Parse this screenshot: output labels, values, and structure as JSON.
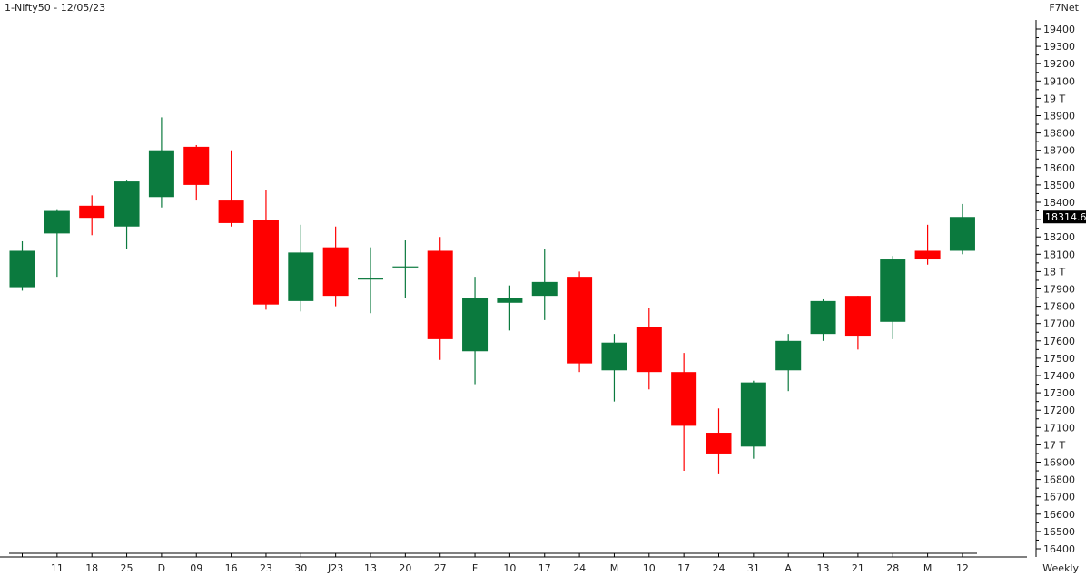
{
  "chart_data": {
    "type": "candlestick",
    "title": "1-Nifty50 - 12/05/23",
    "source": "F7Net",
    "period": "Weekly",
    "last_price": "18314.6",
    "ylim": [
      16400,
      19500
    ],
    "yticks": [
      "19400",
      "19300",
      "19200",
      "19100",
      "19 T",
      "18900",
      "18800",
      "18700",
      "18600",
      "18500",
      "18400",
      "18300",
      "18200",
      "18100",
      "18 T",
      "17900",
      "17800",
      "17700",
      "17600",
      "17500",
      "17400",
      "17300",
      "17200",
      "17100",
      "17 T",
      "16900",
      "16800",
      "16700",
      "16600",
      "16500",
      "16400"
    ],
    "candles": [
      {
        "label": "",
        "open": 17910,
        "high": 18175,
        "low": 17890,
        "close": 18120
      },
      {
        "label": "11",
        "open": 18220,
        "high": 18360,
        "low": 17970,
        "close": 18350
      },
      {
        "label": "18",
        "open": 18380,
        "high": 18440,
        "low": 18210,
        "close": 18310
      },
      {
        "label": "25",
        "open": 18260,
        "high": 18530,
        "low": 18130,
        "close": 18520
      },
      {
        "label": "D",
        "open": 18430,
        "high": 18890,
        "low": 18370,
        "close": 18700
      },
      {
        "label": "09",
        "open": 18720,
        "high": 18730,
        "low": 18410,
        "close": 18500
      },
      {
        "label": "16",
        "open": 18410,
        "high": 18700,
        "low": 18260,
        "close": 18280
      },
      {
        "label": "23",
        "open": 18300,
        "high": 18470,
        "low": 17780,
        "close": 17810
      },
      {
        "label": "30",
        "open": 17830,
        "high": 18270,
        "low": 17770,
        "close": 18110
      },
      {
        "label": "J23",
        "open": 18140,
        "high": 18260,
        "low": 17800,
        "close": 17860
      },
      {
        "label": "13",
        "open": 17960,
        "high": 18140,
        "low": 17760,
        "close": 17960
      },
      {
        "label": "20",
        "open": 18030,
        "high": 18180,
        "low": 17850,
        "close": 18030
      },
      {
        "label": "27",
        "open": 18120,
        "high": 18200,
        "low": 17490,
        "close": 17610
      },
      {
        "label": "F",
        "open": 17540,
        "high": 17970,
        "low": 17350,
        "close": 17850
      },
      {
        "label": "10",
        "open": 17820,
        "high": 17920,
        "low": 17660,
        "close": 17850
      },
      {
        "label": "17",
        "open": 17860,
        "high": 18130,
        "low": 17720,
        "close": 17940
      },
      {
        "label": "24",
        "open": 17970,
        "high": 18000,
        "low": 17420,
        "close": 17470
      },
      {
        "label": "M",
        "open": 17430,
        "high": 17640,
        "low": 17250,
        "close": 17590
      },
      {
        "label": "10",
        "open": 17680,
        "high": 17790,
        "low": 17320,
        "close": 17420
      },
      {
        "label": "17",
        "open": 17420,
        "high": 17530,
        "low": 16850,
        "close": 17110
      },
      {
        "label": "24",
        "open": 17070,
        "high": 17210,
        "low": 16830,
        "close": 16950
      },
      {
        "label": "31",
        "open": 16990,
        "high": 17370,
        "low": 16920,
        "close": 17360
      },
      {
        "label": "A",
        "open": 17430,
        "high": 17640,
        "low": 17310,
        "close": 17600
      },
      {
        "label": "13",
        "open": 17640,
        "high": 17840,
        "low": 17600,
        "close": 17830
      },
      {
        "label": "21",
        "open": 17860,
        "high": 17860,
        "low": 17550,
        "close": 17630
      },
      {
        "label": "28",
        "open": 17710,
        "high": 18090,
        "low": 17610,
        "close": 18070
      },
      {
        "label": "M",
        "open": 18120,
        "high": 18270,
        "low": 18040,
        "close": 18070
      },
      {
        "label": "12",
        "open": 18120,
        "high": 18390,
        "low": 18100,
        "close": 18315
      }
    ],
    "colors": {
      "up": "#0b7a3e",
      "down": "#ff0000",
      "price_tag": "#000000",
      "axis": "#000000"
    }
  }
}
